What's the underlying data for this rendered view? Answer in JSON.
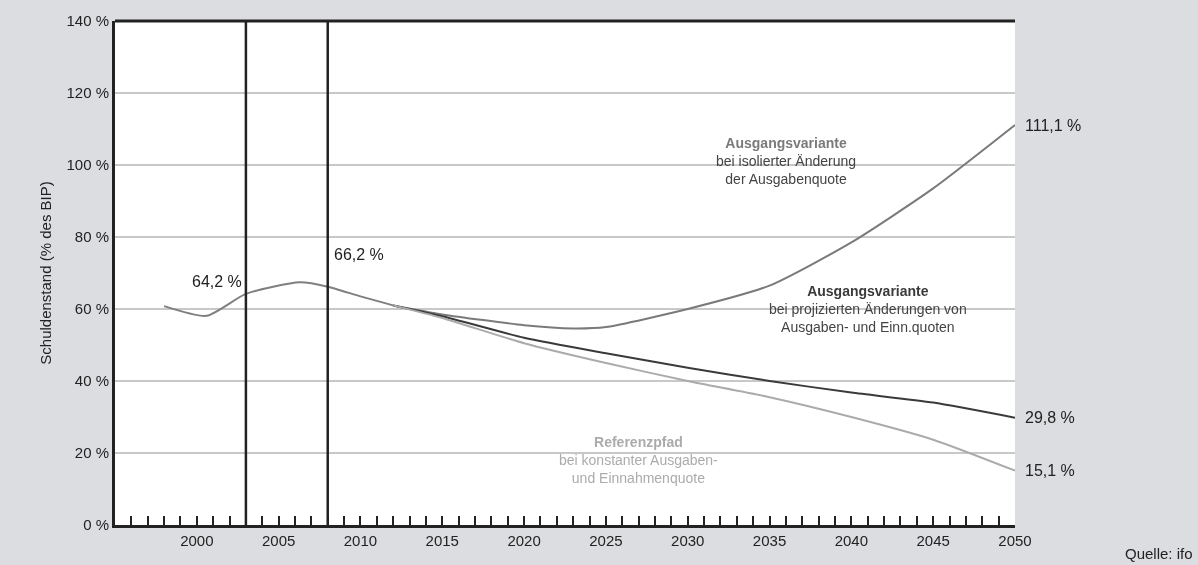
{
  "chart_data": {
    "type": "line",
    "ylabel": "Schuldenstand (% des BIP)",
    "xlim": [
      1995,
      2050
    ],
    "xticks": [
      2000,
      2005,
      2010,
      2015,
      2020,
      2025,
      2030,
      2035,
      2040,
      2045,
      2050
    ],
    "ylim": [
      0,
      140
    ],
    "yticks": [
      {
        "value": 0,
        "label": "0 %"
      },
      {
        "value": 20,
        "label": "20 %"
      },
      {
        "value": 40,
        "label": "40 %"
      },
      {
        "value": 60,
        "label": "60 %"
      },
      {
        "value": 80,
        "label": "80 %"
      },
      {
        "value": 100,
        "label": "100 %"
      },
      {
        "value": 120,
        "label": "120 %"
      },
      {
        "value": 140,
        "label": "140 %"
      }
    ],
    "grid": "y",
    "legend": false,
    "marker": "none",
    "line_style": "solid",
    "series": [
      {
        "color": "#7f7f7f",
        "x": [
          1998,
          2000.6,
          2003,
          2006.3,
          2008,
          2010,
          2012
        ],
        "values": [
          60.8,
          58.1,
          64.2,
          67.4,
          66.2,
          63.5,
          61
        ]
      },
      {
        "name": "Ausgangsvariante\nbei isolierter Änderung\nder Ausgabenquote",
        "color": "#7a7a7a",
        "x": [
          2012,
          2015,
          2020,
          2023,
          2025,
          2030,
          2035,
          2040,
          2045,
          2050
        ],
        "values": [
          61,
          58.5,
          55.5,
          54.6,
          55,
          60,
          66.5,
          78.5,
          93.5,
          111.1
        ]
      },
      {
        "name": "Ausgangsvariante\nbei projizierten Änderungen von\nAusgaben- und Einn.quoten",
        "color": "#3a3a3a",
        "x": [
          2012,
          2015,
          2020,
          2025,
          2030,
          2035,
          2040,
          2045,
          2050
        ],
        "values": [
          61,
          58,
          52,
          47.7,
          43.7,
          40,
          36.8,
          34,
          29.8
        ]
      },
      {
        "name": "Referenzpfad\nbei konstanter Ausgaben-\nund Einnahmenquote",
        "color": "#ababab",
        "x": [
          2012,
          2015,
          2020,
          2025,
          2030,
          2035,
          2040,
          2045,
          2050
        ],
        "values": [
          61,
          57.5,
          50.5,
          45,
          40,
          35.5,
          30,
          23.7,
          15.1
        ]
      }
    ],
    "ref_lines": [
      {
        "axis": "x",
        "value": 2003,
        "color": "#222222"
      },
      {
        "axis": "x",
        "value": 2008,
        "color": "#222222"
      }
    ],
    "annotations": [
      {
        "text": "64,2 %",
        "x": 2003,
        "y": 64.2
      },
      {
        "text": "66,2 %",
        "x": 2008,
        "y": 66.2
      },
      {
        "text": "111,1 %",
        "x": 2050,
        "y": 111.1
      },
      {
        "text": "29,8 %",
        "x": 2050,
        "y": 29.8
      },
      {
        "text": "15,1 %",
        "x": 2050,
        "y": 15.1
      },
      "Quelle: ifo"
    ]
  }
}
